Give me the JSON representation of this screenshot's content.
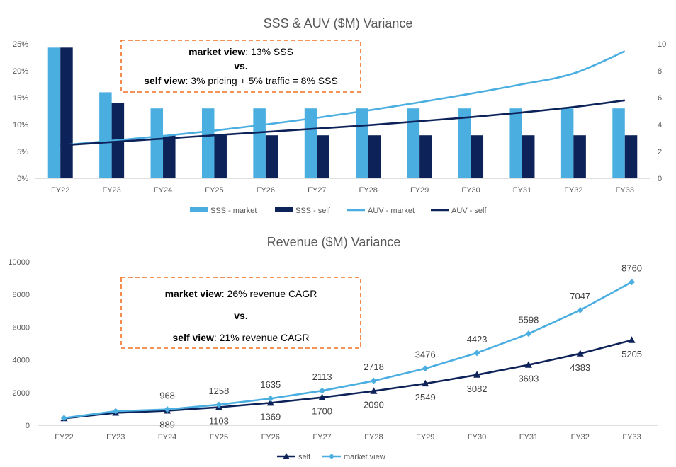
{
  "colors": {
    "market": "#4BAEE0",
    "self": "#0D2259",
    "callout_border": "#F07020",
    "axis": "#BFBFBF",
    "text": "#595959"
  },
  "chart_data": [
    {
      "type": "bar",
      "title": "SSS & AUV ($M) Variance",
      "categories": [
        "FY22",
        "FY23",
        "FY24",
        "FY25",
        "FY26",
        "FY27",
        "FY28",
        "FY29",
        "FY30",
        "FY31",
        "FY32",
        "FY33"
      ],
      "y_left_ticks": [
        "0%",
        "5%",
        "10%",
        "15%",
        "20%",
        "25%"
      ],
      "y_left_range": [
        0,
        25
      ],
      "y_right_ticks": [
        "0",
        "2",
        "4",
        "6",
        "8",
        "10"
      ],
      "y_right_range": [
        0,
        10
      ],
      "series": [
        {
          "name": "SSS - market",
          "type": "bar",
          "axis": "left",
          "values": [
            24.3,
            16,
            13,
            13,
            13,
            13,
            13,
            13,
            13,
            13,
            13,
            13
          ]
        },
        {
          "name": "SSS - self",
          "type": "bar",
          "axis": "left",
          "values": [
            24.3,
            14,
            8,
            8,
            8,
            8,
            8,
            8,
            8,
            8,
            8,
            8
          ]
        },
        {
          "name": "AUV - market",
          "type": "line",
          "axis": "right",
          "values": [
            2.45,
            2.8,
            3.15,
            3.55,
            4.0,
            4.5,
            5.05,
            5.65,
            6.3,
            7.0,
            7.8,
            9.45
          ]
        },
        {
          "name": "AUV - self",
          "type": "line",
          "axis": "right",
          "values": [
            2.45,
            2.7,
            2.95,
            3.2,
            3.45,
            3.7,
            3.95,
            4.25,
            4.55,
            4.9,
            5.3,
            5.8
          ]
        }
      ],
      "legend_position": "bottom",
      "callout": {
        "line1_bold": "market view",
        "line1_rest": ": 13% SSS",
        "line2": "vs.",
        "line3_bold": "self view",
        "line3_rest": ": 3% pricing + 5% traffic = 8% SSS"
      }
    },
    {
      "type": "line",
      "title": "Revenue ($M) Variance",
      "categories": [
        "FY22",
        "FY23",
        "FY24",
        "FY25",
        "FY26",
        "FY27",
        "FY28",
        "FY29",
        "FY30",
        "FY31",
        "FY32",
        "FY33"
      ],
      "y_ticks": [
        "0",
        "2000",
        "4000",
        "6000",
        "8000",
        "10000"
      ],
      "ylim": [
        0,
        10000
      ],
      "series": [
        {
          "name": "self",
          "marker": "triangle",
          "values": [
            420,
            760,
            889,
            1103,
            1369,
            1700,
            2090,
            2549,
            3082,
            3693,
            4383,
            5205
          ],
          "labels": [
            "",
            "",
            "889",
            "1103",
            "1369",
            "1700",
            "2090",
            "2549",
            "3082",
            "3693",
            "4383",
            "5205"
          ]
        },
        {
          "name": "market view",
          "marker": "diamond",
          "values": [
            440,
            860,
            968,
            1258,
            1635,
            2113,
            2718,
            3476,
            4423,
            5598,
            7047,
            8760
          ],
          "labels": [
            "",
            "",
            "968",
            "1258",
            "1635",
            "2113",
            "2718",
            "3476",
            "4423",
            "5598",
            "7047",
            "8760"
          ]
        }
      ],
      "legend_position": "bottom",
      "callout": {
        "line1_bold": "market view",
        "line1_rest": ": 26% revenue CAGR",
        "line2": "vs.",
        "line3_bold": "self view",
        "line3_rest": ": 21% revenue CAGR"
      }
    }
  ]
}
